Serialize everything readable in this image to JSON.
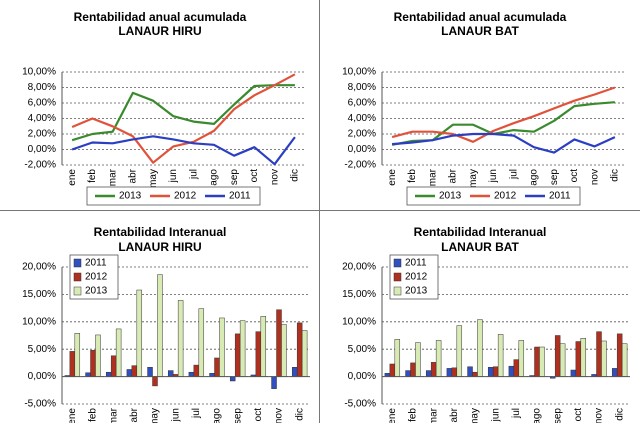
{
  "chart_data": [
    {
      "type": "line",
      "title": "Rentabilidad anual acumulada",
      "subtitle": "LANAUR HIRU",
      "categories": [
        "ene",
        "feb",
        "mar",
        "abr",
        "may",
        "jun",
        "jul",
        "ago",
        "sep",
        "oct",
        "nov",
        "dic"
      ],
      "series": [
        {
          "name": "2013",
          "color": "#3a8a2e",
          "values": [
            1.2,
            2.0,
            2.3,
            7.3,
            6.3,
            4.3,
            3.6,
            3.3,
            5.8,
            8.2,
            8.3,
            8.3
          ]
        },
        {
          "name": "2012",
          "color": "#e0533a",
          "values": [
            2.9,
            4.0,
            3.0,
            1.7,
            -1.7,
            0.4,
            1.0,
            2.4,
            5.2,
            7.0,
            8.3,
            9.7
          ]
        },
        {
          "name": "2011",
          "color": "#2b3fc2",
          "values": [
            0.0,
            0.9,
            0.8,
            1.3,
            1.7,
            1.3,
            0.8,
            0.6,
            -0.8,
            0.3,
            -1.9,
            1.6
          ]
        }
      ],
      "ylim": [
        -2,
        10
      ],
      "yticks": [
        {
          "value": -2,
          "label": "-2,00%"
        },
        {
          "value": 0,
          "label": "0,00%"
        },
        {
          "value": 2,
          "label": "2,00%"
        },
        {
          "value": 4,
          "label": "4,00%"
        },
        {
          "value": 6,
          "label": "6,00%"
        },
        {
          "value": 8,
          "label": "8,00%"
        },
        {
          "value": 10,
          "label": "10,00%"
        }
      ],
      "grid": true,
      "legend": "bottom"
    },
    {
      "type": "line",
      "title": "Rentabilidad anual acumulada",
      "subtitle": "LANAUR BAT",
      "categories": [
        "ene",
        "feb",
        "mar",
        "abr",
        "may",
        "jun",
        "jul",
        "ago",
        "sep",
        "oct",
        "nov",
        "dic"
      ],
      "series": [
        {
          "name": "2013",
          "color": "#3a8a2e",
          "values": [
            0.6,
            1.1,
            1.2,
            3.2,
            3.2,
            2.0,
            2.5,
            2.3,
            3.7,
            5.6,
            5.9,
            6.1
          ]
        },
        {
          "name": "2012",
          "color": "#e0533a",
          "values": [
            1.6,
            2.3,
            2.3,
            2.0,
            1.0,
            2.4,
            3.4,
            4.3,
            5.3,
            6.3,
            7.1,
            8.0
          ]
        },
        {
          "name": "2011",
          "color": "#2b3fc2",
          "values": [
            0.7,
            0.9,
            1.2,
            1.8,
            2.0,
            2.0,
            1.8,
            0.3,
            -0.4,
            1.3,
            0.4,
            1.6
          ]
        }
      ],
      "ylim": [
        -2,
        10
      ],
      "yticks": [
        {
          "value": -2,
          "label": "-2,00%"
        },
        {
          "value": 0,
          "label": "0,00%"
        },
        {
          "value": 2,
          "label": "2,00%"
        },
        {
          "value": 4,
          "label": "4,00%"
        },
        {
          "value": 6,
          "label": "6,00%"
        },
        {
          "value": 8,
          "label": "8,00%"
        },
        {
          "value": 10,
          "label": "10,00%"
        }
      ],
      "grid": true,
      "legend": "bottom"
    },
    {
      "type": "bar",
      "title": "Rentabilidad Interanual",
      "subtitle": "LANAUR HIRU",
      "categories": [
        "ene",
        "feb",
        "mar",
        "abr",
        "may",
        "jun",
        "jul",
        "ago",
        "sep",
        "oct",
        "nov",
        "dic"
      ],
      "series": [
        {
          "name": "2011",
          "color": "#3050c0",
          "values": [
            0.2,
            0.7,
            0.8,
            1.3,
            1.7,
            1.1,
            0.8,
            0.6,
            -0.8,
            0.3,
            -2.2,
            1.7
          ]
        },
        {
          "name": "2012",
          "color": "#b03020",
          "values": [
            4.6,
            4.8,
            3.8,
            2.0,
            -1.7,
            0.4,
            2.1,
            3.4,
            7.8,
            8.2,
            12.2,
            9.8
          ]
        },
        {
          "name": "2013",
          "color": "#d9ebb4",
          "values": [
            7.9,
            7.6,
            8.7,
            15.8,
            18.6,
            13.9,
            12.4,
            10.7,
            10.2,
            11.0,
            9.5,
            8.4
          ]
        }
      ],
      "ylim": [
        -5,
        20
      ],
      "yticks": [
        {
          "value": -5,
          "label": "-5,00%"
        },
        {
          "value": 0,
          "label": "0,00%"
        },
        {
          "value": 5,
          "label": "5,00%"
        },
        {
          "value": 10,
          "label": "10,00%"
        },
        {
          "value": 15,
          "label": "15,00%"
        },
        {
          "value": 20,
          "label": "20,00%"
        }
      ],
      "grid": true,
      "legend": "top-left"
    },
    {
      "type": "bar",
      "title": "Rentabilidad Interanual",
      "subtitle": "LANAUR BAT",
      "categories": [
        "ene",
        "feb",
        "mar",
        "abr",
        "may",
        "jun",
        "jul",
        "ago",
        "sep",
        "oct",
        "nov",
        "dic"
      ],
      "series": [
        {
          "name": "2011",
          "color": "#3050c0",
          "values": [
            0.6,
            1.1,
            1.1,
            1.5,
            1.8,
            1.7,
            1.9,
            0.2,
            -0.3,
            1.2,
            0.4,
            1.5
          ]
        },
        {
          "name": "2012",
          "color": "#b03020",
          "values": [
            2.3,
            2.5,
            2.6,
            1.6,
            0.8,
            1.8,
            3.1,
            5.4,
            7.5,
            6.4,
            8.2,
            7.8
          ]
        },
        {
          "name": "2013",
          "color": "#d9ebb4",
          "values": [
            6.8,
            6.2,
            6.6,
            9.3,
            10.4,
            7.7,
            6.6,
            5.4,
            6.0,
            7.0,
            6.5,
            6.0
          ]
        }
      ],
      "ylim": [
        -5,
        20
      ],
      "yticks": [
        {
          "value": -5,
          "label": "-5,00%"
        },
        {
          "value": 0,
          "label": "0,00%"
        },
        {
          "value": 5,
          "label": "5,00%"
        },
        {
          "value": 10,
          "label": "10,00%"
        },
        {
          "value": 15,
          "label": "15,00%"
        },
        {
          "value": 20,
          "label": "20,00%"
        }
      ],
      "grid": true,
      "legend": "top-left"
    }
  ]
}
